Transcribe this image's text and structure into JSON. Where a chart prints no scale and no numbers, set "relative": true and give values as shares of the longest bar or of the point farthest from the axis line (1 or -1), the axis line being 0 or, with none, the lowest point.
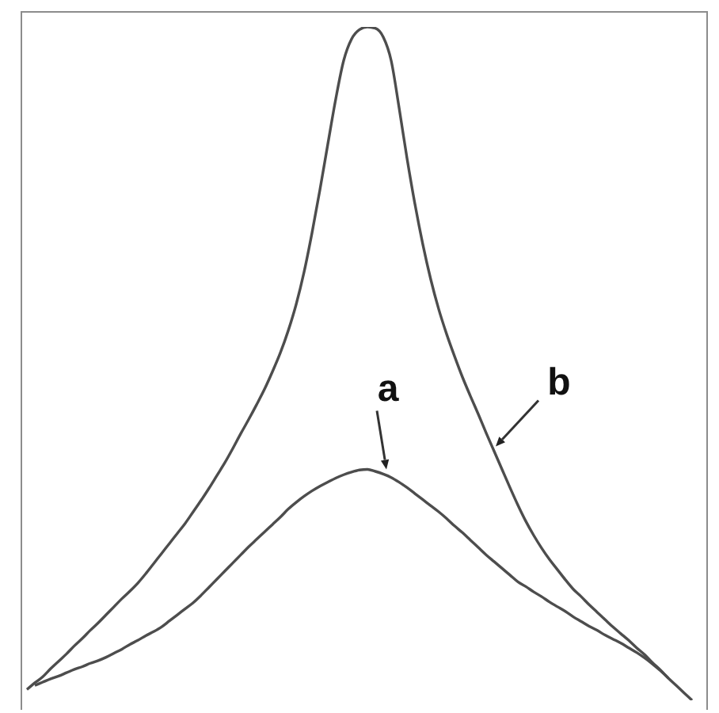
{
  "chart_data": {
    "type": "line",
    "relative": true,
    "categories": [
      null,
      null,
      null,
      null,
      null,
      null,
      null,
      null,
      null,
      null,
      null,
      null,
      null,
      null,
      null,
      null,
      null,
      null,
      null,
      null,
      null,
      null,
      null,
      null,
      null,
      null,
      null,
      null,
      null,
      null,
      null,
      null,
      null,
      null,
      null,
      null,
      null,
      null,
      null,
      null,
      null,
      null,
      null,
      null,
      null,
      null,
      null,
      null,
      null,
      null,
      null,
      null,
      null,
      null,
      null,
      null,
      null,
      null,
      null,
      null,
      null,
      null,
      null,
      null,
      null,
      null,
      null,
      null,
      null,
      null,
      null,
      null,
      null,
      null,
      null,
      null,
      null,
      null,
      null,
      null,
      null,
      null,
      null,
      null,
      null
    ],
    "series": [
      {
        "name": "a",
        "color": "#4d4d4d",
        "values": [
          null,
          0.022,
          0.027,
          0.032,
          0.036,
          0.041,
          0.046,
          0.05,
          0.055,
          0.059,
          0.064,
          0.07,
          0.076,
          0.083,
          0.089,
          0.096,
          0.102,
          0.109,
          0.118,
          0.127,
          0.136,
          0.145,
          0.156,
          0.168,
          0.18,
          0.192,
          0.204,
          0.216,
          0.228,
          0.239,
          0.25,
          0.261,
          0.272,
          0.284,
          0.294,
          0.303,
          0.311,
          0.318,
          0.324,
          0.33,
          0.335,
          0.339,
          0.342,
          0.343,
          0.34,
          0.336,
          0.331,
          0.324,
          0.316,
          0.307,
          0.298,
          0.289,
          0.28,
          0.27,
          0.259,
          0.249,
          0.238,
          0.227,
          0.216,
          0.206,
          0.196,
          0.186,
          0.176,
          0.169,
          0.161,
          0.154,
          0.146,
          0.139,
          0.132,
          0.124,
          0.117,
          0.11,
          0.104,
          0.097,
          0.091,
          0.085,
          0.078,
          0.071,
          0.063,
          0.054,
          0.044,
          0.033,
          null,
          null,
          null
        ]
      },
      {
        "name": "b",
        "color": "#4d4d4d",
        "values": [
          0.016,
          0.026,
          0.035,
          0.047,
          0.058,
          0.069,
          0.081,
          0.092,
          0.104,
          0.115,
          0.127,
          0.139,
          0.151,
          0.162,
          0.174,
          0.188,
          0.203,
          0.218,
          0.233,
          0.248,
          0.263,
          0.28,
          0.297,
          0.315,
          0.334,
          0.353,
          0.374,
          0.396,
          0.417,
          0.439,
          0.462,
          0.488,
          0.516,
          0.549,
          0.588,
          0.636,
          0.694,
          0.758,
          0.826,
          0.893,
          0.95,
          0.982,
          0.996,
          1,
          0.998,
          0.985,
          0.95,
          0.88,
          0.805,
          0.737,
          0.677,
          0.625,
          0.581,
          0.544,
          0.511,
          0.48,
          0.452,
          0.425,
          0.397,
          0.37,
          0.343,
          0.316,
          0.29,
          0.266,
          0.245,
          0.226,
          0.209,
          0.194,
          0.179,
          0.165,
          0.154,
          0.142,
          0.131,
          0.12,
          0.109,
          0.099,
          0.089,
          0.078,
          0.068,
          0.056,
          0.045,
          0.033,
          0.022,
          0.011,
          0
        ]
      }
    ]
  }
}
